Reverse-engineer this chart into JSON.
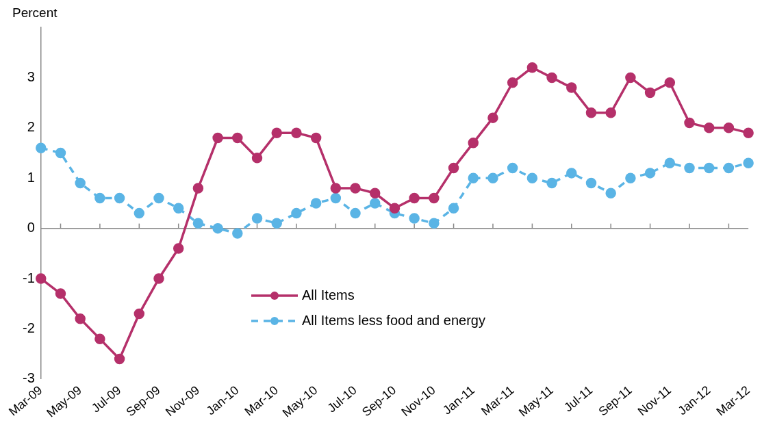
{
  "chart_data": {
    "type": "line",
    "ylabel": "Percent",
    "categories": [
      "Mar-09",
      null,
      "May-09",
      null,
      "Jul-09",
      null,
      "Sep-09",
      null,
      "Nov-09",
      null,
      "Jan-10",
      null,
      "Mar-10",
      null,
      "May-10",
      null,
      "Jul-10",
      null,
      "Sep-10",
      null,
      "Nov-10",
      null,
      "Jan-11",
      null,
      "Mar-11",
      null,
      "May-11",
      null,
      "Jul-11",
      null,
      "Sep-11",
      null,
      "Nov-11",
      null,
      "Jan-12",
      null,
      "Mar-12"
    ],
    "series": [
      {
        "name": "All Items",
        "color": "#b5306a",
        "line_style": "solid",
        "values": [
          -1.0,
          -1.3,
          -1.8,
          -2.2,
          -2.6,
          -1.7,
          -1.0,
          -0.4,
          0.8,
          1.8,
          1.8,
          1.4,
          1.9,
          1.9,
          1.8,
          0.8,
          0.8,
          0.7,
          0.4,
          0.6,
          0.6,
          1.2,
          1.7,
          2.2,
          2.9,
          3.2,
          3.0,
          2.8,
          2.3,
          2.3,
          3.0,
          2.7,
          2.9,
          2.1,
          2.0,
          2.0,
          1.9
        ]
      },
      {
        "name": "All Items less food and energy",
        "color": "#5ab4e5",
        "line_style": "dashed",
        "values": [
          1.6,
          1.5,
          0.9,
          0.6,
          0.6,
          0.3,
          0.6,
          0.4,
          0.1,
          0.0,
          -0.1,
          0.2,
          0.1,
          0.3,
          0.5,
          0.6,
          0.3,
          0.5,
          0.3,
          0.2,
          0.1,
          0.4,
          1.0,
          1.0,
          1.2,
          1.0,
          0.9,
          1.1,
          0.9,
          0.7,
          1.0,
          1.1,
          1.3,
          1.2,
          1.2,
          1.2,
          1.3
        ]
      }
    ],
    "ylim": [
      -3,
      4
    ],
    "yticks": [
      -3,
      -2,
      -1,
      0,
      1,
      2,
      3
    ],
    "ref_lines": [
      {
        "axis": "y",
        "value": 0,
        "color": "#888888"
      }
    ],
    "grid": false,
    "legend": "bottom",
    "marker": "circle"
  }
}
